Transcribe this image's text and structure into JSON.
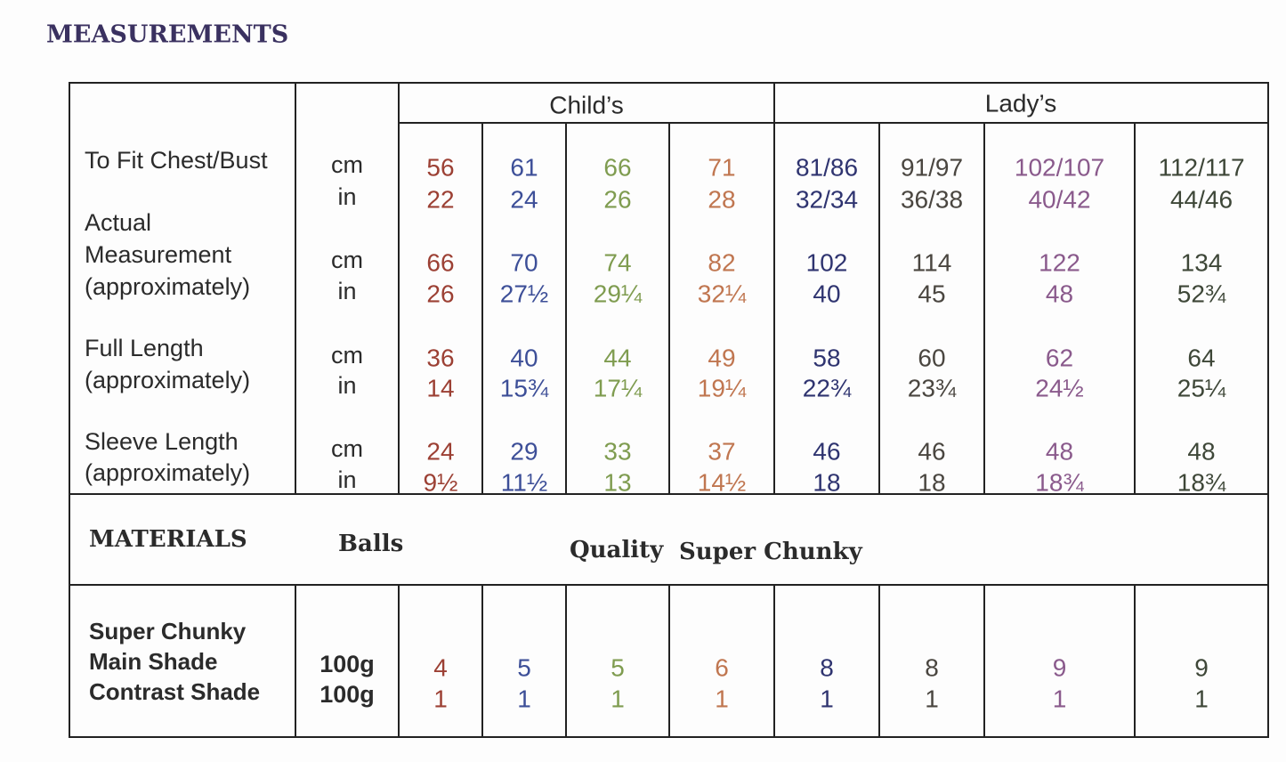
{
  "heading": "MEASUREMENTS",
  "groups": [
    "Child’s",
    "Lady’s"
  ],
  "column_colors": [
    "#9c4034",
    "#3d4f98",
    "#7f9c50",
    "#c07650",
    "#2f3470",
    "#4a4640",
    "#8a5a8c",
    "#3e4738"
  ],
  "measurements": [
    {
      "label": [
        "To Fit Chest/Bust"
      ],
      "units": [
        "cm",
        "in"
      ],
      "cells": [
        [
          "56",
          "22"
        ],
        [
          "61",
          "24"
        ],
        [
          "66",
          "26"
        ],
        [
          "71",
          "28"
        ],
        [
          "81/86",
          "32/34"
        ],
        [
          "91/97",
          "36/38"
        ],
        [
          "102/107",
          "40/42"
        ],
        [
          "112/117",
          "44/46"
        ]
      ]
    },
    {
      "label": [
        "Actual",
        "Measurement",
        "(approximately)"
      ],
      "units": [
        "cm",
        "in"
      ],
      "cells": [
        [
          "66",
          "26"
        ],
        [
          "70",
          "27½"
        ],
        [
          "74",
          "29¼"
        ],
        [
          "82",
          "32¼"
        ],
        [
          "102",
          "40"
        ],
        [
          "114",
          "45"
        ],
        [
          "122",
          "48"
        ],
        [
          "134",
          "52¾"
        ]
      ]
    },
    {
      "label": [
        "Full Length",
        "(approximately)"
      ],
      "units": [
        "cm",
        "in"
      ],
      "cells": [
        [
          "36",
          "14"
        ],
        [
          "40",
          "15¾"
        ],
        [
          "44",
          "17¼"
        ],
        [
          "49",
          "19¼"
        ],
        [
          "58",
          "22¾"
        ],
        [
          "60",
          "23¾"
        ],
        [
          "62",
          "24½"
        ],
        [
          "64",
          "25¼"
        ]
      ]
    },
    {
      "label": [
        "Sleeve Length",
        "(approximately)"
      ],
      "units": [
        "cm",
        "in"
      ],
      "cells": [
        [
          "24",
          "9½"
        ],
        [
          "29",
          "11½"
        ],
        [
          "33",
          "13"
        ],
        [
          "37",
          "14½"
        ],
        [
          "46",
          "18"
        ],
        [
          "46",
          "18"
        ],
        [
          "48",
          "18¾"
        ],
        [
          "48",
          "18¾"
        ]
      ]
    }
  ],
  "materials": {
    "title": "MATERIALS",
    "balls": "Balls",
    "quality": "Quality",
    "yarn_name": "Super Chunky"
  },
  "yarn": {
    "label": [
      "Super Chunky",
      "Main Shade",
      "Contrast Shade"
    ],
    "weights": [
      "100g",
      "100g"
    ],
    "cells": [
      [
        "4",
        "1"
      ],
      [
        "5",
        "1"
      ],
      [
        "5",
        "1"
      ],
      [
        "6",
        "1"
      ],
      [
        "8",
        "1"
      ],
      [
        "8",
        "1"
      ],
      [
        "9",
        "1"
      ],
      [
        "9",
        "1"
      ]
    ]
  }
}
